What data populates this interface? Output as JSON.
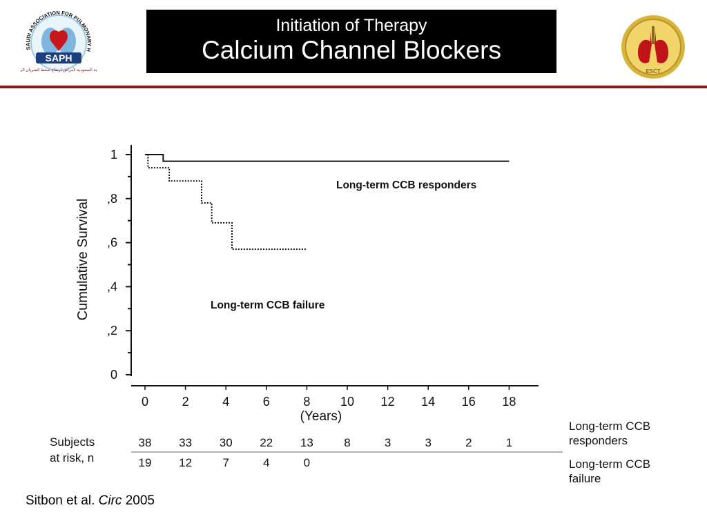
{
  "header": {
    "title_line1": "Initiation of Therapy",
    "title_line2": "Calcium Channel Blockers"
  },
  "logos": {
    "left": {
      "name": "saph-logo",
      "text": "SAPH",
      "arc_text": "SAUDI ASSOCIATION FOR PULMONARY HYPERTENSION",
      "arabic_text": "جمعية السعودية لأمراض إرتفاع ضغط الشريان الرئوي"
    },
    "right": {
      "name": "esct-logo",
      "text": "ESCT"
    }
  },
  "colors": {
    "header_rule": "#8b1a1a",
    "title_bg": "#000000",
    "title_fg": "#ffffff"
  },
  "chart_data": {
    "type": "line",
    "ylabel": "Cumulative Survival",
    "xlabel": "(Years)",
    "x_ticks": [
      0,
      2,
      4,
      6,
      8,
      10,
      12,
      14,
      16,
      18
    ],
    "y_ticks": [
      0,
      0.2,
      0.4,
      0.6,
      0.8,
      1
    ],
    "y_tick_labels": [
      "0",
      ",2",
      ",4",
      ",6",
      ",8",
      "1"
    ],
    "xlim": [
      0,
      19.5
    ],
    "ylim": [
      0,
      1
    ],
    "series": [
      {
        "name": "Long-term CCB responders",
        "style": "solid",
        "steps": [
          [
            0,
            1.0
          ],
          [
            0.9,
            0.97
          ],
          [
            18,
            0.97
          ]
        ]
      },
      {
        "name": "Long-term CCB failure",
        "style": "dotted",
        "steps": [
          [
            0,
            1.0
          ],
          [
            0.15,
            0.94
          ],
          [
            1.2,
            0.88
          ],
          [
            2.8,
            0.78
          ],
          [
            3.3,
            0.69
          ],
          [
            4.3,
            0.57
          ],
          [
            8,
            0.57
          ]
        ]
      }
    ],
    "risk_table": {
      "title": "Subjects at risk, n",
      "x": [
        0,
        2,
        4,
        6,
        8,
        10,
        12,
        14,
        16,
        18
      ],
      "rows": [
        {
          "label": "Long-term CCB responders",
          "values": [
            "38",
            "33",
            "30",
            "22",
            "13",
            "8",
            "3",
            "3",
            "2",
            "1"
          ]
        },
        {
          "label": "Long-term CCB failure",
          "values": [
            "19",
            "12",
            "7",
            "4",
            "0"
          ]
        }
      ]
    }
  },
  "citation": {
    "authors": "Sitbon et al.",
    "journal": "Circ",
    "year": "2005"
  }
}
